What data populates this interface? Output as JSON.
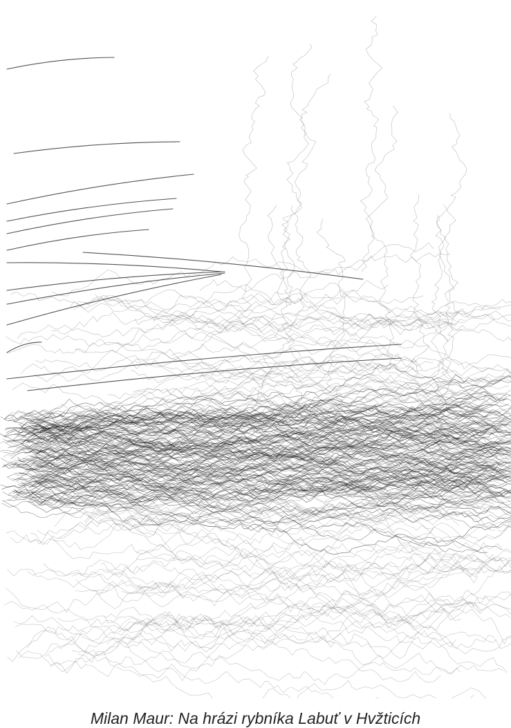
{
  "caption": "Milan Maur: Na hrázi rybníka Labuť v Hvžticích"
}
